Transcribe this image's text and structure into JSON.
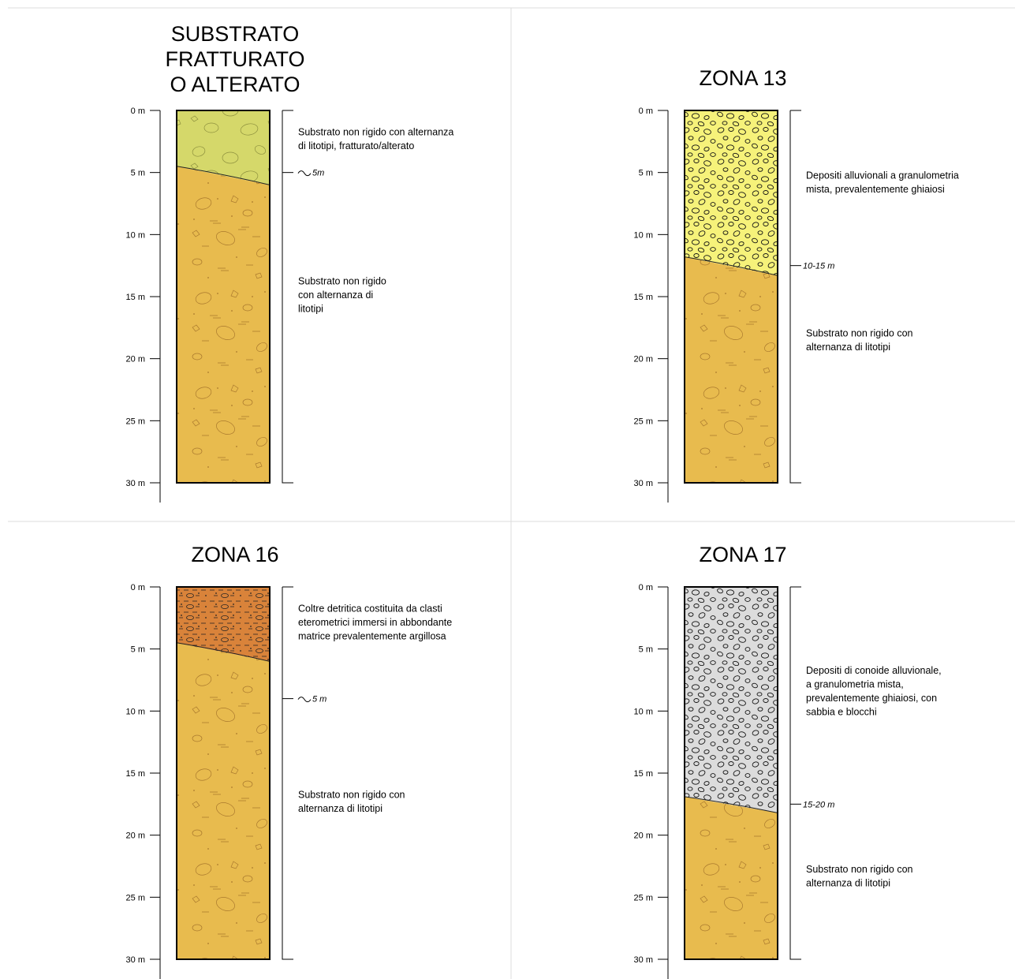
{
  "axis_ticks": [
    "0 m",
    "5 m",
    "10 m",
    "15 m",
    "20 m",
    "25 m",
    "30 m"
  ],
  "colors": {
    "altered_green": "#d5d86a",
    "substrate_orange": "#e8bb4e",
    "alluvial_yellow": "#f6f27a",
    "coltre_brown": "#d9833a",
    "conoide_gray": "#dcdcdc",
    "grid_line": "#dcdcdc"
  },
  "panels": [
    {
      "id": "substrato",
      "title": [
        "SUBSTRATO",
        "FRATTURATO",
        "O ALTERATO"
      ],
      "top_layer": {
        "pattern": "altered-clasts",
        "color": "#d5d86a",
        "boundary_left_m": 4.5,
        "boundary_right_m": 6.0
      },
      "base_layer": {
        "pattern": "substrate-mixed",
        "color": "#e8bb4e"
      },
      "depth_marker": {
        "tilde": true,
        "text": "5m",
        "at_m": 5.0
      },
      "descriptions": [
        {
          "lines": [
            "Substrato non rigido con alternanza",
            "di litotipi, fratturato/alterato"
          ],
          "at_m": 2.0
        },
        {
          "lines": [
            "Substrato non rigido",
            "con alternanza di",
            "litotipi"
          ],
          "at_m": 14.0
        }
      ]
    },
    {
      "id": "zona13",
      "title": [
        "ZONA 13"
      ],
      "top_layer": {
        "pattern": "gravel-circles",
        "color": "#f6f27a",
        "boundary_left_m": 11.8,
        "boundary_right_m": 13.3
      },
      "base_layer": {
        "pattern": "substrate-mixed",
        "color": "#e8bb4e"
      },
      "depth_marker": {
        "tilde": false,
        "text": "10-15 m",
        "at_m": 12.5
      },
      "descriptions": [
        {
          "lines": [
            "Depositi alluvionali a granulometria",
            "mista, prevalentemente ghiaiosi"
          ],
          "at_m": 5.5
        },
        {
          "lines": [
            "Substrato non rigido con",
            "alternanza di litotipi"
          ],
          "at_m": 18.2
        }
      ]
    },
    {
      "id": "zona16",
      "title": [
        "ZONA 16"
      ],
      "top_layer": {
        "pattern": "coltre-dashes",
        "color": "#d9833a",
        "boundary_left_m": 4.5,
        "boundary_right_m": 6.0
      },
      "base_layer": {
        "pattern": "substrate-mixed",
        "color": "#e8bb4e"
      },
      "depth_marker": {
        "tilde": true,
        "text": "5 m",
        "at_m": 9.0
      },
      "descriptions": [
        {
          "lines": [
            "Coltre detritica costituita da clasti",
            "eterometrici immersi in abbondante",
            "matrice prevalentemente argillosa"
          ],
          "at_m": 2.0
        },
        {
          "lines": [
            "Substrato non rigido con",
            "alternanza di litotipi"
          ],
          "at_m": 17.0
        }
      ]
    },
    {
      "id": "zona17",
      "title": [
        "ZONA 17"
      ],
      "top_layer": {
        "pattern": "gravel-circles",
        "color": "#dcdcdc",
        "boundary_left_m": 16.9,
        "boundary_right_m": 18.2
      },
      "base_layer": {
        "pattern": "substrate-mixed",
        "color": "#e8bb4e"
      },
      "depth_marker": {
        "tilde": false,
        "text": "15-20 m",
        "at_m": 17.5
      },
      "descriptions": [
        {
          "lines": [
            "Depositi di conoide alluvionale,",
            "a granulometria mista,",
            "prevalentemente ghiaiosi, con",
            "sabbia e blocchi"
          ],
          "at_m": 7.0
        },
        {
          "lines": [
            "Substrato non rigido con",
            "alternanza di litotipi"
          ],
          "at_m": 23.0
        }
      ]
    }
  ]
}
